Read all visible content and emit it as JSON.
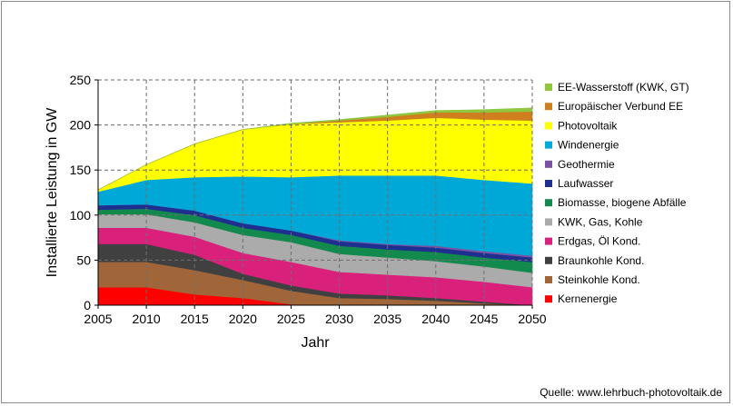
{
  "source_label": "Quelle: www.lehrbuch-photovoltaik.de",
  "chart_data": {
    "type": "area",
    "stacked": true,
    "xlabel": "Jahr",
    "ylabel": "Installierte  Leistung  in GW",
    "x": [
      2005,
      2010,
      2015,
      2020,
      2025,
      2030,
      2035,
      2040,
      2045,
      2050
    ],
    "xlim": [
      2005,
      2050
    ],
    "ylim": [
      0,
      250
    ],
    "yticks": [
      0,
      50,
      100,
      150,
      200,
      250
    ],
    "grid": "dashed vertical and horizontal",
    "legend_position": "right",
    "series": [
      {
        "name": "Kernenergie",
        "color": "#ff0000",
        "values": [
          20,
          20,
          12,
          8,
          1,
          0,
          0,
          0,
          0,
          0
        ]
      },
      {
        "name": "Steinkohle Kond.",
        "color": "#a0663a",
        "values": [
          28,
          28,
          27,
          20,
          15,
          8,
          7,
          5,
          2,
          0
        ]
      },
      {
        "name": "Braunkohle Kond.",
        "color": "#404040",
        "values": [
          20,
          20,
          17,
          7,
          6,
          5,
          4,
          3,
          2,
          0
        ]
      },
      {
        "name": "Erdgas, Öl Kond.",
        "color": "#d9207b",
        "values": [
          18,
          18,
          20,
          23,
          26,
          24,
          23,
          23,
          22,
          20
        ]
      },
      {
        "name": "KWK, Gas, Kohle",
        "color": "#ababab",
        "values": [
          15,
          15,
          16,
          20,
          22,
          20,
          19,
          18,
          17,
          16
        ]
      },
      {
        "name": "Biomasse, biogene Abfälle",
        "color": "#128a4d",
        "values": [
          5,
          6,
          8,
          8,
          8,
          9,
          9,
          10,
          10,
          12
        ]
      },
      {
        "name": "Laufwasser",
        "color": "#1f2f8f",
        "values": [
          5,
          5,
          5,
          5,
          5,
          5,
          5,
          5,
          5,
          5
        ]
      },
      {
        "name": "Geothermie",
        "color": "#7a52a3",
        "values": [
          0,
          0,
          0,
          0,
          0,
          1,
          1,
          2,
          2,
          2
        ]
      },
      {
        "name": "Windenergie",
        "color": "#00a8d8",
        "values": [
          15,
          27,
          37,
          52,
          59,
          72,
          76,
          78,
          79,
          80
        ]
      },
      {
        "name": "Photovoltaik",
        "color": "#ffff00",
        "values": [
          2,
          17,
          37,
          52,
          59,
          59,
          61,
          64,
          67,
          70
        ]
      },
      {
        "name": "Europäischer Verbund EE",
        "color": "#d07f1e",
        "values": [
          0,
          0,
          0,
          0,
          0,
          2,
          4,
          6,
          8,
          10
        ]
      },
      {
        "name": "EE-Wasserstoff (KWK, GT)",
        "color": "#8fc63f",
        "values": [
          0,
          0,
          0,
          0,
          1,
          1,
          2,
          2,
          3,
          4
        ]
      }
    ]
  }
}
